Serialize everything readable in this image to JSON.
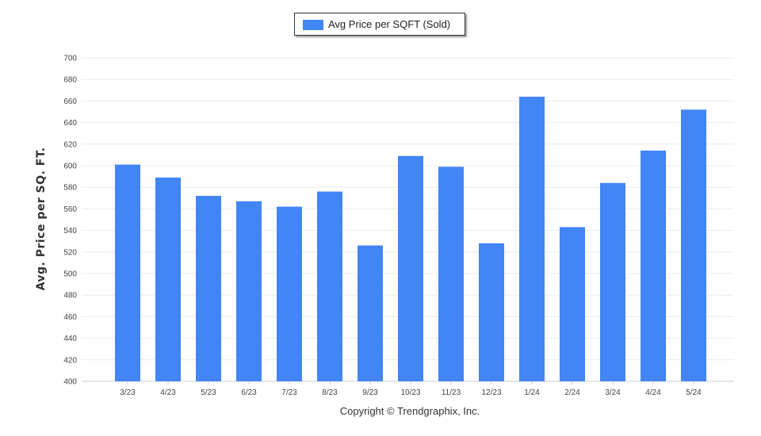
{
  "colors": {
    "bar": "#4285f4",
    "grid": "#ebebeb",
    "axis": "#cccccc",
    "text": "#333333"
  },
  "legend": {
    "label": "Avg Price per SQFT (Sold)"
  },
  "footer": {
    "copyright": "Copyright © Trendgraphix, Inc."
  },
  "chart_data": {
    "type": "bar",
    "title": "",
    "xlabel": "",
    "ylabel": "Avg. Price per SQ. FT.",
    "categories": [
      "3/23",
      "4/23",
      "5/23",
      "6/23",
      "7/23",
      "8/23",
      "9/23",
      "10/23",
      "11/23",
      "12/23",
      "1/24",
      "2/24",
      "3/24",
      "4/24",
      "5/24"
    ],
    "series": [
      {
        "name": "Avg Price per SQFT (Sold)",
        "values": [
          601,
          589,
          572,
          567,
          562,
          576,
          526,
          609,
          599,
          528,
          664,
          543,
          584,
          614,
          652
        ]
      }
    ],
    "ylim": [
      400,
      700
    ],
    "yticks": [
      400,
      420,
      440,
      460,
      480,
      500,
      520,
      540,
      560,
      580,
      600,
      620,
      640,
      660,
      680,
      700
    ],
    "grid": true,
    "legend_position": "top-center"
  }
}
